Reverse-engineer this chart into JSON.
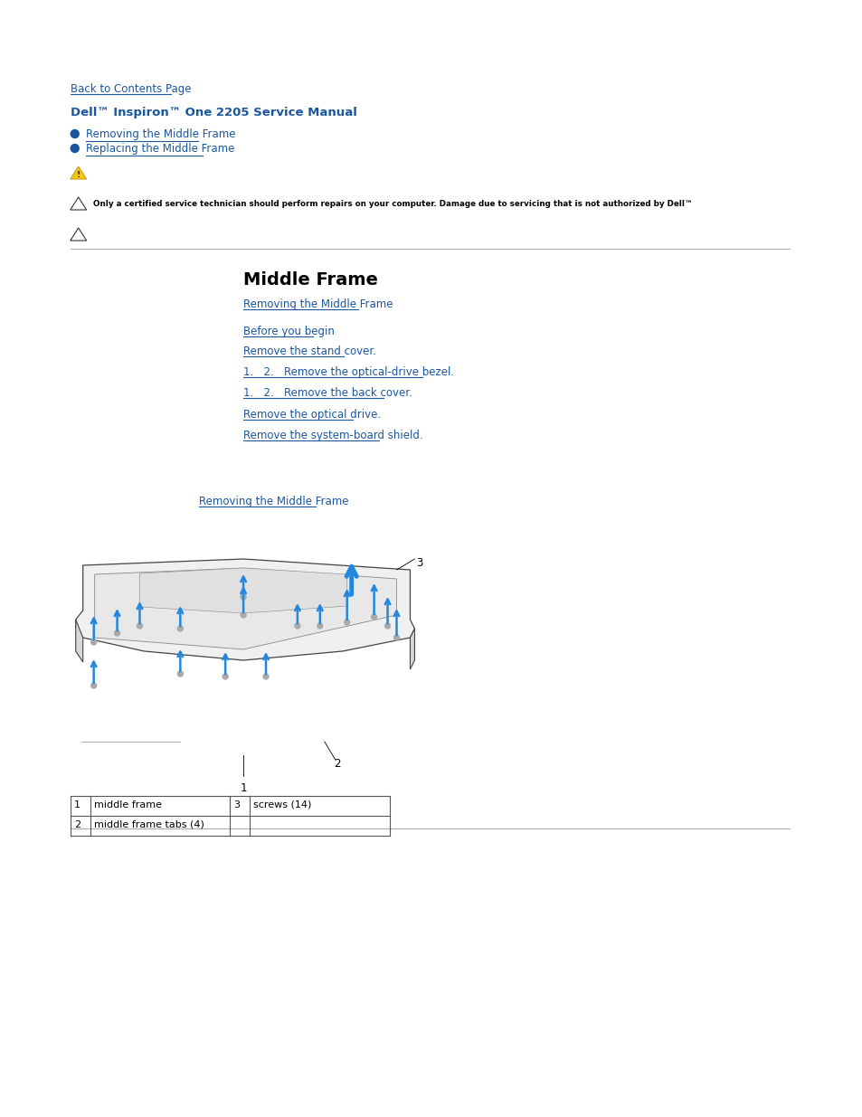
{
  "bg_color": "#ffffff",
  "text_color": "#000000",
  "blue_color": "#1a56a0",
  "back_link": "Back to Contents Page",
  "title": "Dell™ Inspiron™ One 2205 Service Manual",
  "bullet1": "Removing the Middle Frame",
  "bullet2": "Replacing the Middle Frame",
  "warning_text": "Only a certified service technician should perform repairs on your computer. Damage due to servicing that is not authorized by Dell™",
  "section_title": "Middle Frame",
  "removing_link": "Removing the Middle Frame",
  "steps": [
    "Before you begin",
    "Remove the stand cover.",
    "1.   2.   Remove the optical-drive bezel.",
    "1.   2.   Remove the back cover.",
    "Remove the optical drive.",
    "Remove the system-board shield."
  ],
  "table_row1": [
    "1",
    "middle frame",
    "3",
    "screws (14)"
  ],
  "table_row2": [
    "2",
    "middle frame tabs (4)"
  ]
}
